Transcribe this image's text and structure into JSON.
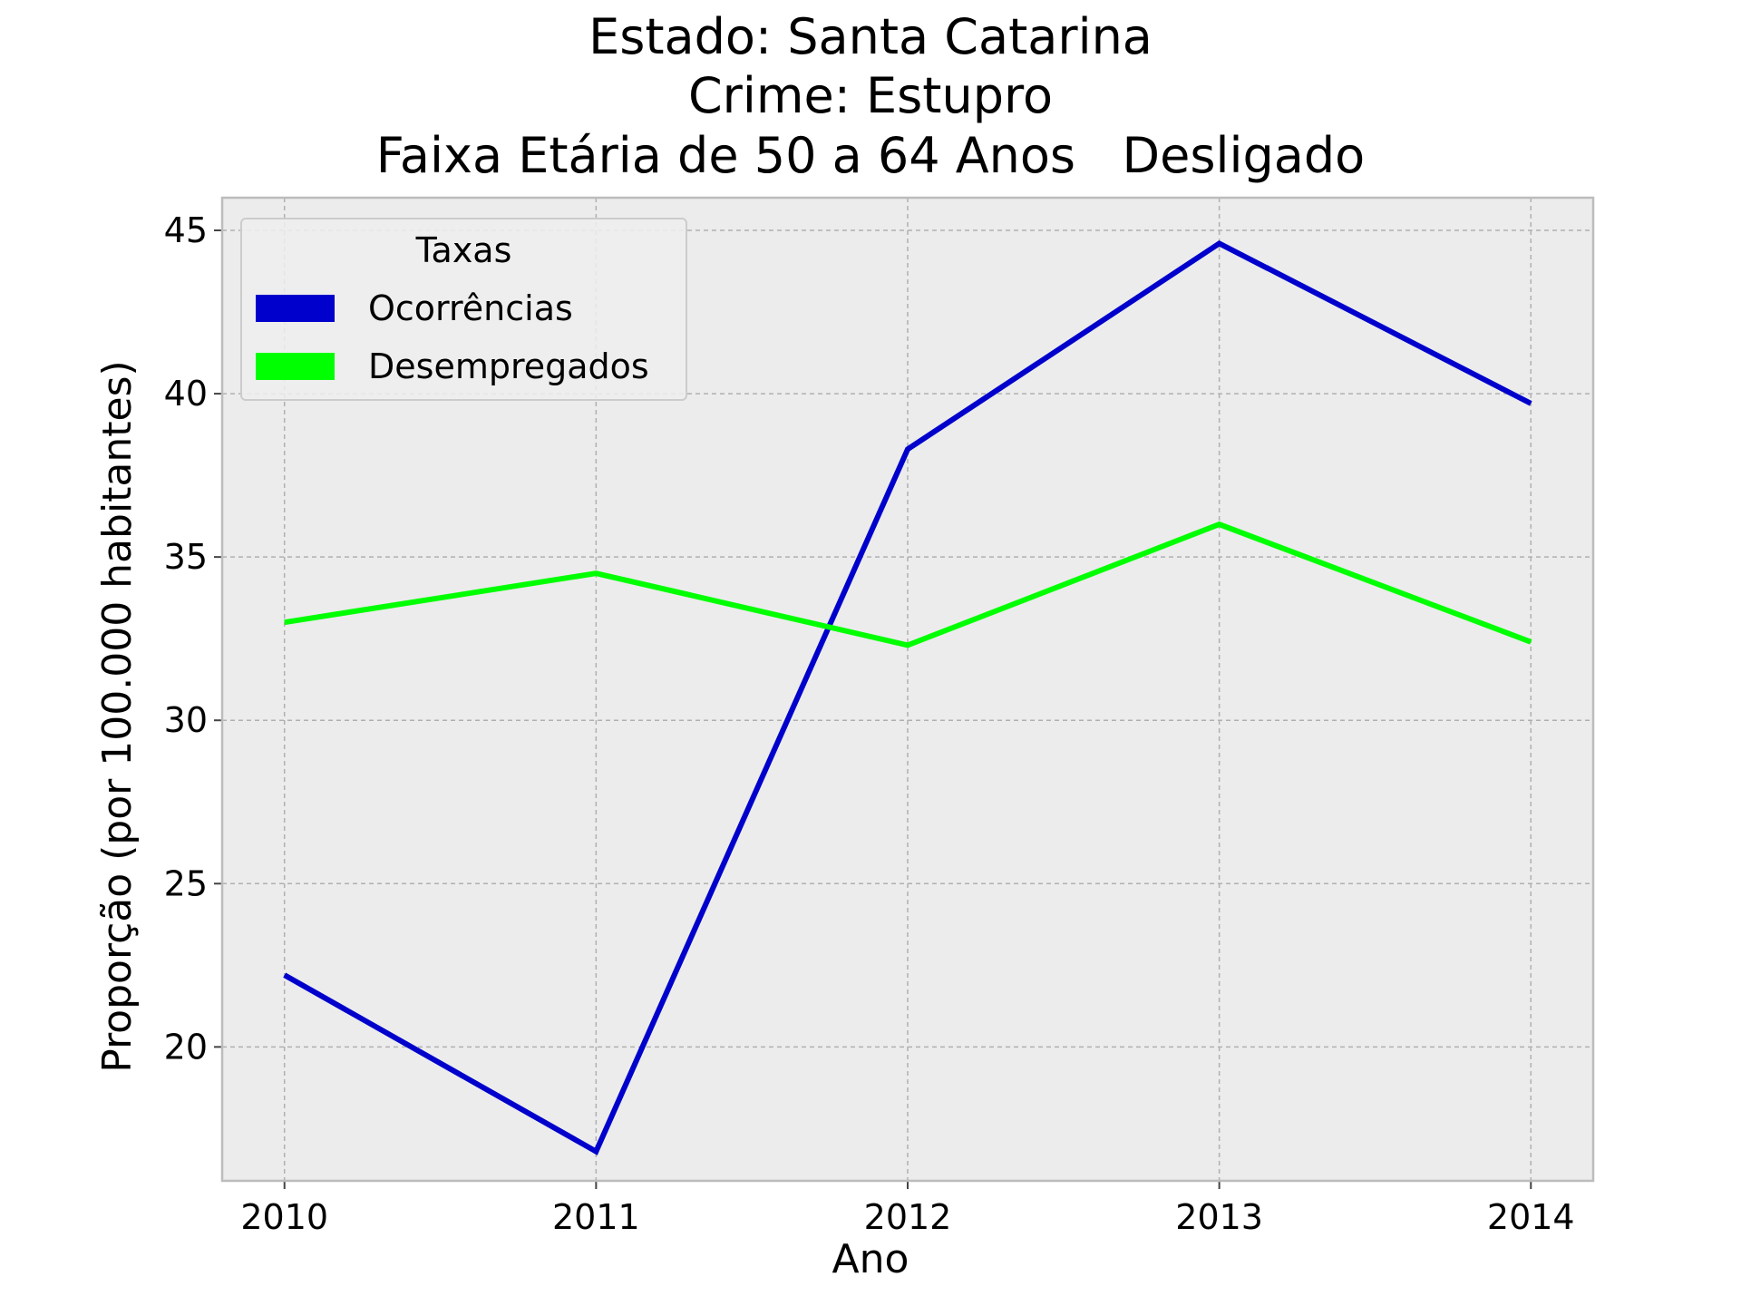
{
  "chart_data": {
    "type": "line",
    "title": [
      "Estado: Santa Catarina",
      "Crime: Estupro",
      "Faixa Etária de 50 a 64 Anos   Desligado"
    ],
    "xlabel": "Ano",
    "ylabel": "Proporção (por 100.000 habitantes)",
    "x": [
      2010,
      2011,
      2012,
      2013,
      2014
    ],
    "x_tick_labels": [
      "2010",
      "2011",
      "2012",
      "2013",
      "2014"
    ],
    "y_ticks": [
      20,
      25,
      30,
      35,
      40,
      45
    ],
    "y_tick_labels": [
      "20",
      "25",
      "30",
      "35",
      "40",
      "45"
    ],
    "xlim": [
      2009.8,
      2014.2
    ],
    "ylim": [
      15.9,
      46.0
    ],
    "grid": true,
    "legend": {
      "title": "Taxas",
      "placement": "upper-left"
    },
    "series": [
      {
        "name": "Ocorrências",
        "color": "#0000cc",
        "values": [
          22.2,
          16.8,
          38.3,
          44.6,
          39.7
        ]
      },
      {
        "name": "Desempregados",
        "color": "#00ff00",
        "values": [
          33.0,
          34.5,
          32.3,
          36.0,
          32.4
        ]
      }
    ],
    "background_color": "#ececec",
    "grid_color": "#b0b0b0"
  }
}
